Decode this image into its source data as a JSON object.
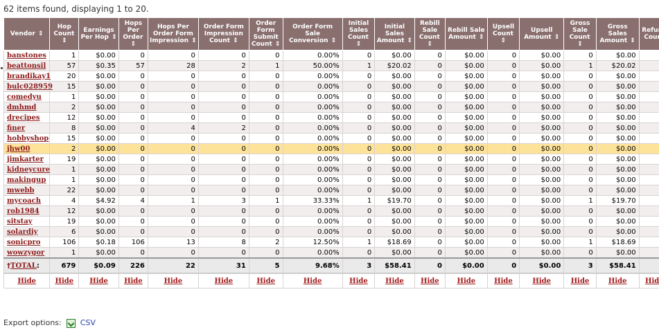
{
  "summary": "62 items found, displaying 1 to 20.",
  "headers": [
    "Vendor",
    "Hop Count",
    "Earnings Per Hop",
    "Hops Per Order",
    "Hops Per Order Form Impression",
    "Order Form Impression Count",
    "Order Form Submit Count",
    "Order Form Sale Conversion",
    "Initial Sales Count",
    "Initial Sales Amount",
    "Rebill Sale Count",
    "Rebill Sale Amount",
    "Upsell Count",
    "Upsell Amount",
    "Gross Sale Count",
    "Gross Sales Amount",
    "Refund Count"
  ],
  "rows": [
    [
      "banstones",
      "1",
      "$0.00",
      "0",
      "0",
      "0",
      "0",
      "0.00%",
      "0",
      "$0.00",
      "0",
      "$0.00",
      "0",
      "$0.00",
      "0",
      "$0.00",
      ""
    ],
    [
      "beattonsil",
      "57",
      "$0.35",
      "57",
      "28",
      "2",
      "1",
      "50.00%",
      "1",
      "$20.02",
      "0",
      "$0.00",
      "0",
      "$0.00",
      "1",
      "$20.02",
      ""
    ],
    [
      "brandikay1",
      "20",
      "$0.00",
      "0",
      "0",
      "0",
      "0",
      "0.00%",
      "0",
      "$0.00",
      "0",
      "$0.00",
      "0",
      "$0.00",
      "0",
      "$0.00",
      ""
    ],
    [
      "bulc028959",
      "15",
      "$0.00",
      "0",
      "0",
      "0",
      "0",
      "0.00%",
      "0",
      "$0.00",
      "0",
      "$0.00",
      "0",
      "$0.00",
      "0",
      "$0.00",
      ""
    ],
    [
      "comedyu",
      "1",
      "$0.00",
      "0",
      "0",
      "0",
      "0",
      "0.00%",
      "0",
      "$0.00",
      "0",
      "$0.00",
      "0",
      "$0.00",
      "0",
      "$0.00",
      ""
    ],
    [
      "dmhmd",
      "2",
      "$0.00",
      "0",
      "0",
      "0",
      "0",
      "0.00%",
      "0",
      "$0.00",
      "0",
      "$0.00",
      "0",
      "$0.00",
      "0",
      "$0.00",
      ""
    ],
    [
      "drecipes",
      "12",
      "$0.00",
      "0",
      "0",
      "0",
      "0",
      "0.00%",
      "0",
      "$0.00",
      "0",
      "$0.00",
      "0",
      "$0.00",
      "0",
      "$0.00",
      ""
    ],
    [
      "finer",
      "8",
      "$0.00",
      "0",
      "4",
      "2",
      "0",
      "0.00%",
      "0",
      "$0.00",
      "0",
      "$0.00",
      "0",
      "$0.00",
      "0",
      "$0.00",
      ""
    ],
    [
      "hobbyshop",
      "15",
      "$0.00",
      "0",
      "0",
      "0",
      "0",
      "0.00%",
      "0",
      "$0.00",
      "0",
      "$0.00",
      "0",
      "$0.00",
      "0",
      "$0.00",
      ""
    ],
    [
      "jhw00",
      "2",
      "$0.00",
      "0",
      "0",
      "0",
      "0",
      "0.00%",
      "0",
      "$0.00",
      "0",
      "$0.00",
      "0",
      "$0.00",
      "0",
      "$0.00",
      ""
    ],
    [
      "jimkarter",
      "19",
      "$0.00",
      "0",
      "0",
      "0",
      "0",
      "0.00%",
      "0",
      "$0.00",
      "0",
      "$0.00",
      "0",
      "$0.00",
      "0",
      "$0.00",
      ""
    ],
    [
      "kidneycure",
      "1",
      "$0.00",
      "0",
      "0",
      "0",
      "0",
      "0.00%",
      "0",
      "$0.00",
      "0",
      "$0.00",
      "0",
      "$0.00",
      "0",
      "$0.00",
      ""
    ],
    [
      "makingup",
      "1",
      "$0.00",
      "0",
      "0",
      "0",
      "0",
      "0.00%",
      "0",
      "$0.00",
      "0",
      "$0.00",
      "0",
      "$0.00",
      "0",
      "$0.00",
      ""
    ],
    [
      "mwebb",
      "22",
      "$0.00",
      "0",
      "0",
      "0",
      "0",
      "0.00%",
      "0",
      "$0.00",
      "0",
      "$0.00",
      "0",
      "$0.00",
      "0",
      "$0.00",
      ""
    ],
    [
      "mycoach",
      "4",
      "$4.92",
      "4",
      "1",
      "3",
      "1",
      "33.33%",
      "1",
      "$19.70",
      "0",
      "$0.00",
      "0",
      "$0.00",
      "1",
      "$19.70",
      ""
    ],
    [
      "rob1984",
      "12",
      "$0.00",
      "0",
      "0",
      "0",
      "0",
      "0.00%",
      "0",
      "$0.00",
      "0",
      "$0.00",
      "0",
      "$0.00",
      "0",
      "$0.00",
      ""
    ],
    [
      "sitstay",
      "19",
      "$0.00",
      "0",
      "0",
      "0",
      "0",
      "0.00%",
      "0",
      "$0.00",
      "0",
      "$0.00",
      "0",
      "$0.00",
      "0",
      "$0.00",
      ""
    ],
    [
      "solardiy",
      "6",
      "$0.00",
      "0",
      "0",
      "0",
      "0",
      "0.00%",
      "0",
      "$0.00",
      "0",
      "$0.00",
      "0",
      "$0.00",
      "0",
      "$0.00",
      ""
    ],
    [
      "sonicpro",
      "106",
      "$0.18",
      "106",
      "13",
      "8",
      "2",
      "12.50%",
      "1",
      "$18.69",
      "0",
      "$0.00",
      "0",
      "$0.00",
      "1",
      "$18.69",
      ""
    ],
    [
      "wowzygor",
      "1",
      "$0.00",
      "0",
      "0",
      "0",
      "0",
      "0.00%",
      "0",
      "$0.00",
      "0",
      "$0.00",
      "0",
      "$0.00",
      "0",
      "$0.00",
      ""
    ]
  ],
  "highlight_vendor": "jhw00",
  "total": {
    "label": "TOTAL",
    "prefix": "†",
    "values": [
      "679",
      "$0.09",
      "226",
      "22",
      "31",
      "5",
      "9.68%",
      "3",
      "$58.41",
      "0",
      "$0.00",
      "0",
      "$0.00",
      "3",
      "$58.41",
      ""
    ]
  },
  "hide_label": "Hide",
  "sort_glyph": "⇕",
  "export": {
    "label": "Export options:",
    "csv_label": "CSV",
    "icon": "spreadsheet-icon"
  },
  "colors": {
    "header_bg": "#8a6f6f",
    "highlight": "#fde39a",
    "link": "#8b1a1a"
  }
}
